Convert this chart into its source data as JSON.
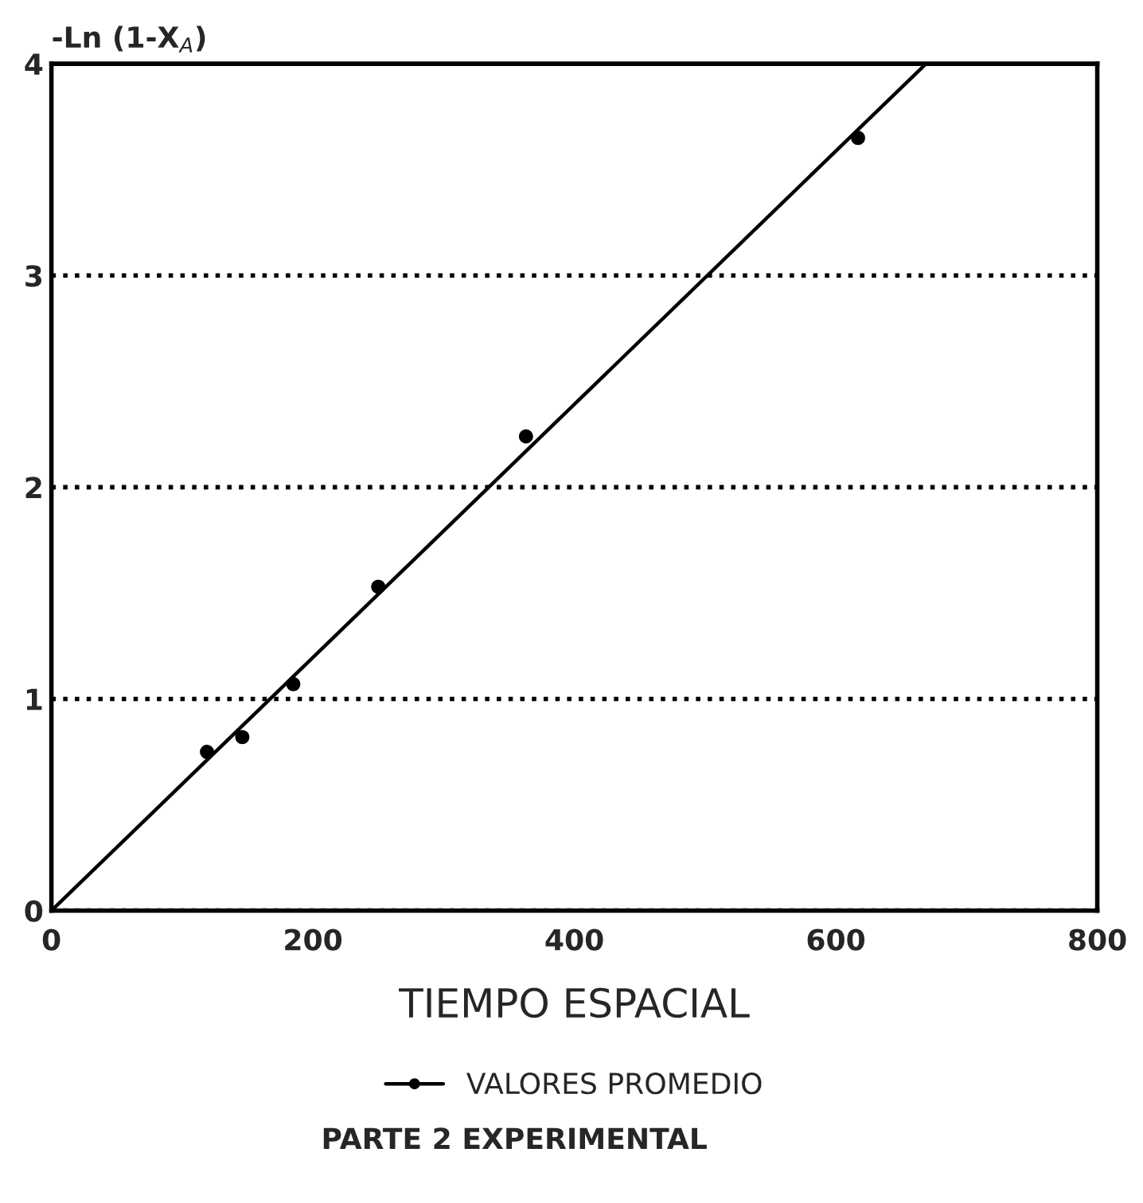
{
  "chart_data": {
    "type": "scatter",
    "xlabel": "TIEMPO ESPACIAL",
    "ylabel": "-Ln (1-X$_{A}$)",
    "annotations": [
      "PARTE 2 EXPERIMENTAL"
    ],
    "series": [
      {
        "name": "VALORES PROMEDIO",
        "color": "#000000",
        "marker": "circle",
        "x": [
          119,
          146,
          185,
          250,
          363,
          617
        ],
        "values": [
          0.75,
          0.82,
          1.07,
          1.53,
          2.24,
          3.65
        ]
      },
      {
        "type": "line",
        "color": "#000000",
        "line_style": "solid",
        "x": [
          0,
          669
        ],
        "values": [
          0,
          4
        ]
      }
    ],
    "xlim": [
      0,
      800
    ],
    "xticks": [
      0,
      200,
      400,
      600,
      800
    ],
    "ylim": [
      0,
      4
    ],
    "yticks": [
      0,
      1,
      2,
      3,
      4
    ],
    "grid": "y",
    "legend": "bottom"
  }
}
